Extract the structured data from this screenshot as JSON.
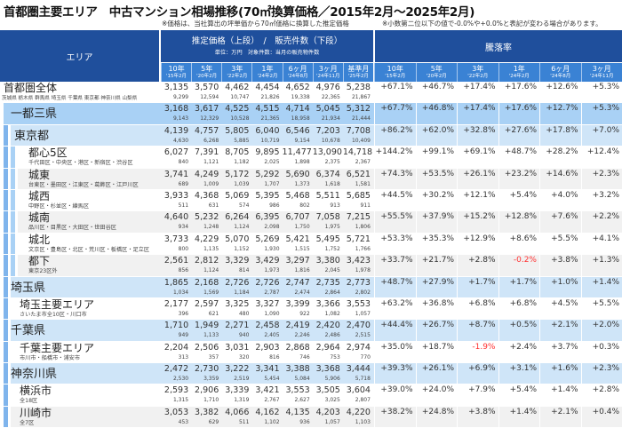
{
  "title": "首都圏主要エリア　中古マンション相場推移(70㎡換算価格／2015年2月～2025年2月)",
  "note_left": "※価格は、当社算出の坪単価から70㎡価格に換算した推定価格",
  "note_right": "※小数第二位以下の値で-0.0%や+0.0%と表記が変わる場合があります。",
  "header": {
    "area": "エリア",
    "price_title": "推定価格（上段）　/　販売件数（下段）",
    "price_unit": "単位：万円　対象件数：当月の販売物件数",
    "rate_title": "騰落率",
    "price_cols": [
      {
        "a": "10年",
        "b": "'15年2月"
      },
      {
        "a": "5年",
        "b": "'20年2月"
      },
      {
        "a": "3年",
        "b": "'22年2月"
      },
      {
        "a": "1年",
        "b": "'24年2月"
      },
      {
        "a": "6ヶ月",
        "b": "'24年8月"
      },
      {
        "a": "3ヶ月",
        "b": "'24年11月"
      },
      {
        "a": "基準月",
        "b": "'25年2月"
      }
    ],
    "rate_cols": [
      {
        "a": "10年",
        "b": "'15年2月"
      },
      {
        "a": "5年",
        "b": "'20年2月"
      },
      {
        "a": "3年",
        "b": "'22年2月"
      },
      {
        "a": "1年",
        "b": "'24年2月"
      },
      {
        "a": "6ヶ月",
        "b": "'24年8月"
      },
      {
        "a": "3ヶ月",
        "b": "'24年11月"
      }
    ]
  },
  "colors": {
    "header_dark": "#1f4f9c",
    "header_sub": "#3a82d4",
    "region": "#a9d1f5",
    "prefecture": "#cfe5f8",
    "alt_row": "#f1f1f1",
    "negative": "#ff3030"
  },
  "rows": [
    {
      "name": "首都圏全体",
      "sub": "茨城県 栃木県 群馬県 埼玉県 千葉県 東京都 神奈川県 山梨県",
      "level": 0,
      "prices": [
        "3,135",
        "3,570",
        "4,462",
        "4,454",
        "4,652",
        "4,976",
        "5,238"
      ],
      "counts": [
        "9,299",
        "12,594",
        "10,747",
        "21,826",
        "19,338",
        "22,365",
        "21,867"
      ],
      "rates": [
        "+67.1%",
        "+46.7%",
        "+17.4%",
        "+17.6%",
        "+12.6%",
        "+5.3%"
      ]
    },
    {
      "name": "一都三県",
      "sub": "",
      "level": 1,
      "prices": [
        "3,168",
        "3,617",
        "4,525",
        "4,515",
        "4,714",
        "5,045",
        "5,312"
      ],
      "counts": [
        "9,143",
        "12,329",
        "10,528",
        "21,365",
        "18,958",
        "21,934",
        "21,444"
      ],
      "rates": [
        "+67.7%",
        "+46.8%",
        "+17.4%",
        "+17.6%",
        "+12.7%",
        "+5.3%"
      ]
    },
    {
      "name": "東京都",
      "sub": "",
      "level": 2,
      "prices": [
        "4,139",
        "4,757",
        "5,805",
        "6,040",
        "6,546",
        "7,203",
        "7,708"
      ],
      "counts": [
        "4,630",
        "6,268",
        "5,885",
        "10,719",
        "9,154",
        "10,678",
        "10,409"
      ],
      "rates": [
        "+86.2%",
        "+62.0%",
        "+32.8%",
        "+27.6%",
        "+17.8%",
        "+7.0%"
      ]
    },
    {
      "name": "都心5区",
      "sub": "千代田区・中央区・港区・新宿区・渋谷区",
      "level": 3,
      "alt": false,
      "prices": [
        "6,027",
        "7,391",
        "8,705",
        "9,895",
        "11,477",
        "13,090",
        "14,718"
      ],
      "counts": [
        "840",
        "1,121",
        "1,182",
        "2,025",
        "1,898",
        "2,375",
        "2,367"
      ],
      "rates": [
        "+144.2%",
        "+99.1%",
        "+69.1%",
        "+48.7%",
        "+28.2%",
        "+12.4%"
      ]
    },
    {
      "name": "城東",
      "sub": "台東区・墨田区・江東区・葛飾区・江戸川区",
      "level": 3,
      "alt": true,
      "prices": [
        "3,741",
        "4,249",
        "5,172",
        "5,292",
        "5,690",
        "6,374",
        "6,521"
      ],
      "counts": [
        "689",
        "1,009",
        "1,039",
        "1,707",
        "1,373",
        "1,618",
        "1,581"
      ],
      "rates": [
        "+74.3%",
        "+53.5%",
        "+26.1%",
        "+23.2%",
        "+14.6%",
        "+2.3%"
      ]
    },
    {
      "name": "城西",
      "sub": "中野区・杉並区・練馬区",
      "level": 3,
      "alt": false,
      "prices": [
        "3,933",
        "4,368",
        "5,069",
        "5,395",
        "5,468",
        "5,511",
        "5,685"
      ],
      "counts": [
        "511",
        "631",
        "574",
        "986",
        "802",
        "913",
        "911"
      ],
      "rates": [
        "+44.5%",
        "+30.2%",
        "+12.1%",
        "+5.4%",
        "+4.0%",
        "+3.2%"
      ]
    },
    {
      "name": "城南",
      "sub": "品川区・目黒区・大田区・世田谷区",
      "level": 3,
      "alt": true,
      "prices": [
        "4,640",
        "5,232",
        "6,264",
        "6,395",
        "6,707",
        "7,058",
        "7,215"
      ],
      "counts": [
        "934",
        "1,248",
        "1,124",
        "2,098",
        "1,750",
        "1,975",
        "1,806"
      ],
      "rates": [
        "+55.5%",
        "+37.9%",
        "+15.2%",
        "+12.8%",
        "+7.6%",
        "+2.2%"
      ]
    },
    {
      "name": "城北",
      "sub": "文京区・豊島区・北区・荒川区・板橋区・足立区",
      "level": 3,
      "alt": false,
      "prices": [
        "3,733",
        "4,229",
        "5,070",
        "5,269",
        "5,421",
        "5,495",
        "5,721"
      ],
      "counts": [
        "800",
        "1,135",
        "1,152",
        "1,930",
        "1,515",
        "1,752",
        "1,766"
      ],
      "rates": [
        "+53.3%",
        "+35.3%",
        "+12.9%",
        "+8.6%",
        "+5.5%",
        "+4.1%"
      ]
    },
    {
      "name": "都下",
      "sub": "東京23区外",
      "level": 3,
      "alt": true,
      "prices": [
        "2,561",
        "2,812",
        "3,329",
        "3,429",
        "3,297",
        "3,380",
        "3,423"
      ],
      "counts": [
        "856",
        "1,124",
        "814",
        "1,973",
        "1,816",
        "2,045",
        "1,978"
      ],
      "rates": [
        "+33.7%",
        "+21.7%",
        "+2.8%",
        "-0.2%",
        "+3.8%",
        "+1.3%"
      ]
    },
    {
      "name": "埼玉県",
      "sub": "",
      "level": 2,
      "prices": [
        "1,865",
        "2,168",
        "2,726",
        "2,726",
        "2,747",
        "2,735",
        "2,773"
      ],
      "counts": [
        "1,034",
        "1,569",
        "1,184",
        "2,787",
        "2,474",
        "2,864",
        "2,802"
      ],
      "rates": [
        "+48.7%",
        "+27.9%",
        "+1.7%",
        "+1.7%",
        "+1.0%",
        "+1.4%"
      ]
    },
    {
      "name": "埼玉主要エリア",
      "sub": "さいたま市全10区・川口市",
      "level": 4,
      "alt": false,
      "prices": [
        "2,177",
        "2,597",
        "3,325",
        "3,327",
        "3,399",
        "3,366",
        "3,553"
      ],
      "counts": [
        "396",
        "621",
        "480",
        "1,090",
        "922",
        "1,082",
        "1,057"
      ],
      "rates": [
        "+63.2%",
        "+36.8%",
        "+6.8%",
        "+6.8%",
        "+4.5%",
        "+5.5%"
      ]
    },
    {
      "name": "千葉県",
      "sub": "",
      "level": 2,
      "prices": [
        "1,710",
        "1,949",
        "2,271",
        "2,458",
        "2,419",
        "2,420",
        "2,470"
      ],
      "counts": [
        "949",
        "1,133",
        "940",
        "2,405",
        "2,246",
        "2,486",
        "2,515"
      ],
      "rates": [
        "+44.4%",
        "+26.7%",
        "+8.7%",
        "+0.5%",
        "+2.1%",
        "+2.0%"
      ]
    },
    {
      "name": "千葉主要エリア",
      "sub": "市川市・船橋市・浦安市",
      "level": 4,
      "alt": false,
      "prices": [
        "2,204",
        "2,506",
        "3,031",
        "2,903",
        "2,868",
        "2,964",
        "2,974"
      ],
      "counts": [
        "313",
        "357",
        "320",
        "816",
        "746",
        "753",
        "770"
      ],
      "rates": [
        "+35.0%",
        "+18.7%",
        "-1.9%",
        "+2.4%",
        "+3.7%",
        "+0.3%"
      ]
    },
    {
      "name": "神奈川県",
      "sub": "",
      "level": 2,
      "prices": [
        "2,472",
        "2,730",
        "3,222",
        "3,341",
        "3,388",
        "3,368",
        "3,444"
      ],
      "counts": [
        "2,530",
        "3,359",
        "2,519",
        "5,454",
        "5,084",
        "5,906",
        "5,718"
      ],
      "rates": [
        "+39.3%",
        "+26.1%",
        "+6.9%",
        "+3.1%",
        "+1.6%",
        "+2.3%"
      ]
    },
    {
      "name": "横浜市",
      "sub": "全18区",
      "level": 4,
      "alt": false,
      "prices": [
        "2,593",
        "2,906",
        "3,339",
        "3,421",
        "3,553",
        "3,505",
        "3,604"
      ],
      "counts": [
        "1,315",
        "1,710",
        "1,319",
        "2,767",
        "2,627",
        "3,025",
        "2,807"
      ],
      "rates": [
        "+39.0%",
        "+24.0%",
        "+7.9%",
        "+5.4%",
        "+1.4%",
        "+2.8%"
      ]
    },
    {
      "name": "川崎市",
      "sub": "全7区",
      "level": 4,
      "alt": true,
      "prices": [
        "3,053",
        "3,382",
        "4,066",
        "4,162",
        "4,135",
        "4,203",
        "4,220"
      ],
      "counts": [
        "453",
        "629",
        "511",
        "1,102",
        "936",
        "1,057",
        "1,103"
      ],
      "rates": [
        "+38.2%",
        "+24.8%",
        "+3.8%",
        "+1.4%",
        "+2.1%",
        "+0.4%"
      ]
    }
  ]
}
